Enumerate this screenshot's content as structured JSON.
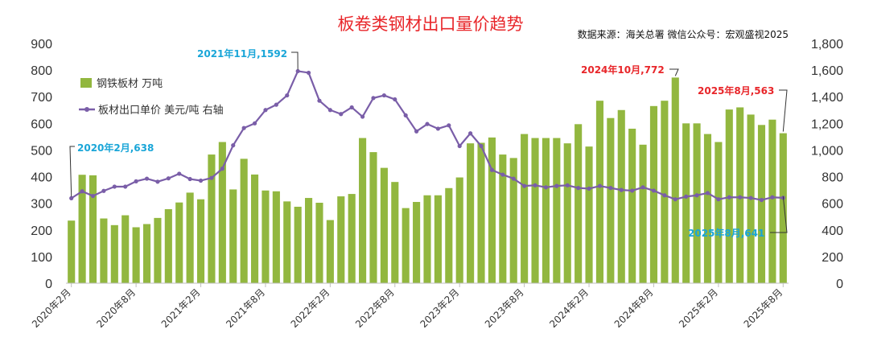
{
  "chart_data": {
    "type": "bar",
    "title": "板卷类钢材出口量价趋势",
    "source": "数据来源：海关总署  微信公众号：宏观盛视2025",
    "categories": [
      "2020年2月",
      "2020年3月",
      "2020年4月",
      "2020年5月",
      "2020年6月",
      "2020年7月",
      "2020年8月",
      "2020年9月",
      "2020年10月",
      "2020年11月",
      "2020年12月",
      "2021年1月",
      "2021年2月",
      "2021年3月",
      "2021年4月",
      "2021年5月",
      "2021年6月",
      "2021年7月",
      "2021年8月",
      "2021年9月",
      "2021年10月",
      "2021年11月",
      "2021年12月",
      "2022年1月",
      "2022年2月",
      "2022年3月",
      "2022年4月",
      "2022年5月",
      "2022年6月",
      "2022年7月",
      "2022年8月",
      "2022年9月",
      "2022年10月",
      "2022年11月",
      "2022年12月",
      "2023年1月",
      "2023年2月",
      "2023年3月",
      "2023年4月",
      "2023年5月",
      "2023年6月",
      "2023年7月",
      "2023年8月",
      "2023年9月",
      "2023年10月",
      "2023年11月",
      "2023年12月",
      "2024年1月",
      "2024年2月",
      "2024年3月",
      "2024年4月",
      "2024年5月",
      "2024年6月",
      "2024年7月",
      "2024年8月",
      "2024年9月",
      "2024年10月",
      "2024年11月",
      "2024年12月",
      "2025年1月",
      "2025年2月",
      "2025年3月",
      "2025年4月",
      "2025年5月",
      "2025年6月",
      "2025年7月",
      "2025年8月"
    ],
    "x_tick_labels": [
      "2020年2月",
      "2020年8月",
      "2021年2月",
      "2021年8月",
      "2022年2月",
      "2022年8月",
      "2023年2月",
      "2023年8月",
      "2024年2月",
      "2024年8月",
      "2025年2月",
      "2025年8月"
    ],
    "series": [
      {
        "name": "钢铁板材 万吨",
        "type": "bar",
        "axis": "left",
        "color": "#92b73f",
        "values": [
          235,
          407,
          405,
          243,
          218,
          255,
          210,
          222,
          245,
          278,
          303,
          340,
          315,
          483,
          530,
          352,
          467,
          408,
          348,
          345,
          307,
          287,
          320,
          302,
          237,
          326,
          335,
          545,
          492,
          433,
          380,
          282,
          305,
          330,
          330,
          357,
          397,
          525,
          527,
          547,
          483,
          470,
          560,
          545,
          545,
          545,
          525,
          597,
          513,
          685,
          620,
          650,
          580,
          520,
          665,
          685,
          772,
          600,
          600,
          560,
          530,
          652,
          660,
          633,
          594,
          614,
          563
        ]
      },
      {
        "name": "板材出口单价 美元/吨 右轴",
        "type": "line",
        "axis": "right",
        "color": "#7a5ea8",
        "values": [
          638,
          690,
          655,
          693,
          725,
          725,
          765,
          785,
          762,
          787,
          822,
          782,
          770,
          790,
          860,
          1035,
          1165,
          1200,
          1300,
          1340,
          1410,
          1592,
          1580,
          1370,
          1300,
          1270,
          1320,
          1250,
          1390,
          1410,
          1380,
          1260,
          1140,
          1195,
          1160,
          1185,
          1030,
          1125,
          1030,
          850,
          815,
          785,
          730,
          735,
          720,
          730,
          735,
          715,
          710,
          730,
          715,
          700,
          695,
          720,
          695,
          660,
          630,
          650,
          660,
          677,
          630,
          645,
          645,
          640,
          625,
          645,
          641
        ]
      }
    ],
    "left_axis": {
      "min": 0,
      "max": 900,
      "step": 100,
      "tick_labels": [
        "0",
        "100",
        "200",
        "300",
        "400",
        "500",
        "600",
        "700",
        "800",
        "900"
      ]
    },
    "right_axis": {
      "min": 0,
      "max": 1800,
      "step": 200,
      "tick_labels": [
        "0",
        "200",
        "400",
        "600",
        "800",
        "1,000",
        "1,200",
        "1,400",
        "1,600",
        "1,800"
      ]
    },
    "legend_position": "top-left",
    "annotations": [
      {
        "text": "2020年2月,638",
        "index": 0,
        "series": 1,
        "color": "#1aa6d8"
      },
      {
        "text": "2021年11月,1592",
        "index": 21,
        "series": 1,
        "color": "#1aa6d8"
      },
      {
        "text": "2024年10月,772",
        "index": 56,
        "series": 0,
        "color": "#e8262a"
      },
      {
        "text": "2025年8月,563",
        "index": 66,
        "series": 0,
        "color": "#e8262a"
      },
      {
        "text": "2025年8月,641",
        "index": 66,
        "series": 1,
        "color": "#1aa6d8"
      }
    ]
  }
}
